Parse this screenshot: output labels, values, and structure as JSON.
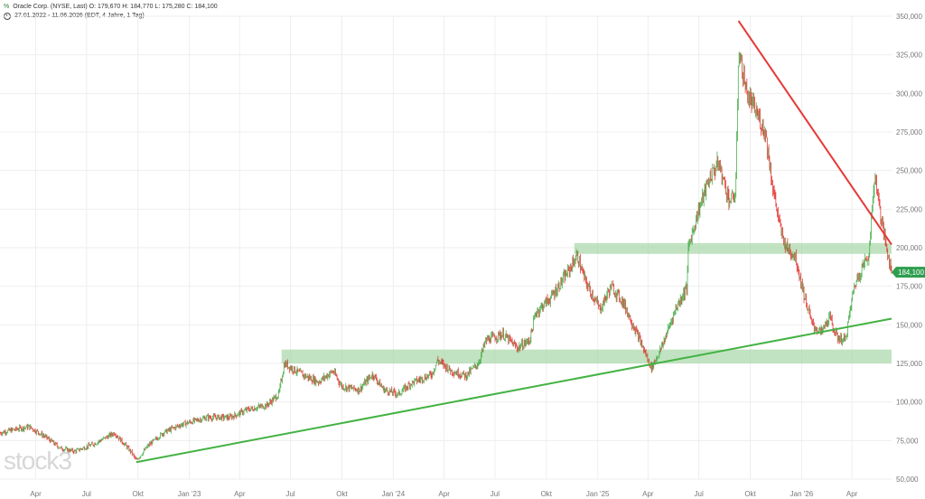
{
  "header": {
    "symbol_line": "Oracle Corp. (NYSE, Last)  O: 179,670  H: 184,770  L: 175,280  C: 184,100",
    "range_line": "27.01.2022 - 11.06.2026  (EDT, 4 Jahre, 1 Tag)",
    "symbol_icon": "chart-logo-icon",
    "range_icon": "clock-icon"
  },
  "watermark": "stock3",
  "colors": {
    "up": "#4caf50",
    "down": "#e53935",
    "trend_up": "#43b243",
    "trend_down": "#e53935",
    "zone": "#9fd49f",
    "price_label_bg": "#2e9e4f",
    "grid": "#eeeeee"
  },
  "chart_data": {
    "type": "candlestick",
    "title": "",
    "xlabel": "",
    "ylabel": "",
    "ylim": [
      50000,
      350000
    ],
    "x_range": [
      "2022-01-27",
      "2026-06-11"
    ],
    "y_ticks": [
      "50,000",
      "75,000",
      "100,000",
      "125,000",
      "150,000",
      "175,000",
      "200,000",
      "225,000",
      "250,000",
      "275,000",
      "300,000",
      "325,000",
      "350,000"
    ],
    "y_tick_values": [
      50000,
      75000,
      100000,
      125000,
      150000,
      175000,
      200000,
      225000,
      250000,
      275000,
      300000,
      325000,
      350000
    ],
    "x_ticks": [
      {
        "label": "Apr",
        "date": "2022-04-01"
      },
      {
        "label": "Jul",
        "date": "2022-07-01"
      },
      {
        "label": "Okt",
        "date": "2022-10-01"
      },
      {
        "label": "Jan '23",
        "date": "2023-01-01"
      },
      {
        "label": "Apr",
        "date": "2023-04-01"
      },
      {
        "label": "Jul",
        "date": "2023-07-01"
      },
      {
        "label": "Okt",
        "date": "2023-10-01"
      },
      {
        "label": "Jan '24",
        "date": "2024-01-01"
      },
      {
        "label": "Apr",
        "date": "2024-04-01"
      },
      {
        "label": "Jul",
        "date": "2024-07-01"
      },
      {
        "label": "Okt",
        "date": "2024-10-01"
      },
      {
        "label": "Jan '25",
        "date": "2025-01-01"
      },
      {
        "label": "Apr",
        "date": "2025-04-01"
      },
      {
        "label": "Jul",
        "date": "2025-07-01"
      },
      {
        "label": "Okt",
        "date": "2025-10-01"
      },
      {
        "label": "Jan '26",
        "date": "2026-01-01"
      },
      {
        "label": "Apr",
        "date": "2026-04-01"
      }
    ],
    "price_path": [
      [
        "2022-01-27",
        80000
      ],
      [
        "2022-02-20",
        82000
      ],
      [
        "2022-03-20",
        84000
      ],
      [
        "2022-04-20",
        77000
      ],
      [
        "2022-05-15",
        70000
      ],
      [
        "2022-06-10",
        68000
      ],
      [
        "2022-07-15",
        73000
      ],
      [
        "2022-08-20",
        80000
      ],
      [
        "2022-09-20",
        67000
      ],
      [
        "2022-09-28",
        62000
      ],
      [
        "2022-10-20",
        72000
      ],
      [
        "2022-11-15",
        80000
      ],
      [
        "2022-12-15",
        85000
      ],
      [
        "2023-02-01",
        90000
      ],
      [
        "2023-03-15",
        90000
      ],
      [
        "2023-04-15",
        95000
      ],
      [
        "2023-05-20",
        98000
      ],
      [
        "2023-06-10",
        105000
      ],
      [
        "2023-06-20",
        125000
      ],
      [
        "2023-07-20",
        118000
      ],
      [
        "2023-08-20",
        113000
      ],
      [
        "2023-09-15",
        120000
      ],
      [
        "2023-10-01",
        110000
      ],
      [
        "2023-11-01",
        108000
      ],
      [
        "2023-11-25",
        118000
      ],
      [
        "2023-12-15",
        108000
      ],
      [
        "2024-01-10",
        105000
      ],
      [
        "2024-02-01",
        112000
      ],
      [
        "2024-03-10",
        118000
      ],
      [
        "2024-03-20",
        127000
      ],
      [
        "2024-04-15",
        120000
      ],
      [
        "2024-05-10",
        117000
      ],
      [
        "2024-06-01",
        125000
      ],
      [
        "2024-06-15",
        140000
      ],
      [
        "2024-07-15",
        144000
      ],
      [
        "2024-08-10",
        135000
      ],
      [
        "2024-09-01",
        140000
      ],
      [
        "2024-09-12",
        158000
      ],
      [
        "2024-10-10",
        168000
      ],
      [
        "2024-11-10",
        185000
      ],
      [
        "2024-11-25",
        195000
      ],
      [
        "2024-12-10",
        178000
      ],
      [
        "2025-01-05",
        160000
      ],
      [
        "2025-01-25",
        175000
      ],
      [
        "2025-02-15",
        165000
      ],
      [
        "2025-03-15",
        142000
      ],
      [
        "2025-04-07",
        122000
      ],
      [
        "2025-04-25",
        135000
      ],
      [
        "2025-05-20",
        160000
      ],
      [
        "2025-06-10",
        175000
      ],
      [
        "2025-06-12",
        200000
      ],
      [
        "2025-07-01",
        225000
      ],
      [
        "2025-07-20",
        245000
      ],
      [
        "2025-08-05",
        255000
      ],
      [
        "2025-08-25",
        230000
      ],
      [
        "2025-09-05",
        235000
      ],
      [
        "2025-09-10",
        328000
      ],
      [
        "2025-09-25",
        300000
      ],
      [
        "2025-10-15",
        285000
      ],
      [
        "2025-10-28",
        275000
      ],
      [
        "2025-11-10",
        240000
      ],
      [
        "2025-11-25",
        210000
      ],
      [
        "2025-12-05",
        200000
      ],
      [
        "2025-12-20",
        195000
      ],
      [
        "2026-01-05",
        170000
      ],
      [
        "2026-01-20",
        150000
      ],
      [
        "2026-02-05",
        145000
      ],
      [
        "2026-02-20",
        155000
      ],
      [
        "2026-03-05",
        142000
      ],
      [
        "2026-03-20",
        140000
      ],
      [
        "2026-04-05",
        175000
      ],
      [
        "2026-04-20",
        188000
      ],
      [
        "2026-05-01",
        195000
      ],
      [
        "2026-05-12",
        248000
      ],
      [
        "2026-05-25",
        215000
      ],
      [
        "2026-06-11",
        184100
      ]
    ],
    "last_price_label": "184,100",
    "last_price": 184100,
    "trendline_up": [
      [
        "2022-09-28",
        61000
      ],
      [
        "2026-06-11",
        154000
      ]
    ],
    "trendline_down": [
      [
        "2025-09-10",
        347000
      ],
      [
        "2026-06-11",
        202000
      ]
    ],
    "resistance_zone_upper": {
      "from": "2024-11-20",
      "to": "2026-06-11",
      "low": 196000,
      "high": 203000
    },
    "support_zone_lower": {
      "from": "2023-06-15",
      "to": "2026-06-11",
      "low": 125000,
      "high": 134000
    },
    "grid": true
  }
}
